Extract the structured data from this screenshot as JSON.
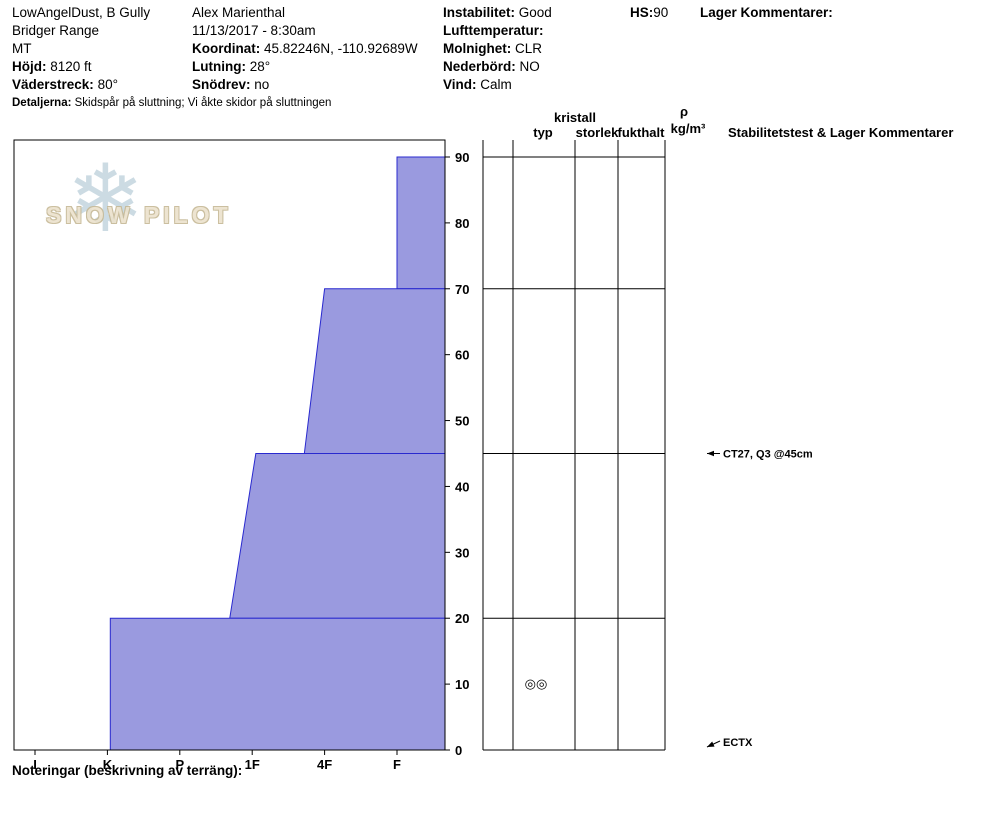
{
  "header": {
    "site_name": "LowAngelDust, B Gully",
    "range": "Bridger Range",
    "state": "MT",
    "elevation_label": "Höjd:",
    "elevation_value": "8120 ft",
    "aspect_label": "Väderstreck:",
    "aspect_value": "80°",
    "observer": "Alex Marienthal",
    "datetime": "11/13/2017 - 8:30am",
    "coordinates_label": "Koordinat:",
    "coordinates_value": "45.82246N, -110.92689W",
    "slope_label": "Lutning:",
    "slope_value": "28°",
    "drifting_label": "Snödrev:",
    "drifting_value": "no",
    "instability_label": "Instabilitet:",
    "instability_value": "Good",
    "air_temp_label": "Lufttemperatur:",
    "air_temp_value": "",
    "sky_label": "Molnighet:",
    "sky_value": "CLR",
    "precip_label": "Nederbörd:",
    "precip_value": "NO",
    "wind_label": "Vind:",
    "wind_value": "Calm",
    "hs_label": "HS:",
    "hs_value": "90",
    "layer_comments_label": "Lager Kommentarer:",
    "details_label": "Detaljerna:",
    "details_value": "Skidspår på sluttning; Vi åkte skidor på sluttningen"
  },
  "logo": {
    "snowflake": "❄",
    "text": "SNOW PILOT"
  },
  "columns": {
    "kristall": "kristall",
    "typ": "typ",
    "storlek": "storlek",
    "fukthalt": "fukthalt",
    "rho": "ρ",
    "rho_units": "kg/m³",
    "stability_header": "Stabilitetstest & Lager Kommentarer"
  },
  "grain_symbols": [
    {
      "symbol": "◎◎",
      "depth_cm": 10
    }
  ],
  "annotations": [
    {
      "text": "CT27, Q3 @45cm",
      "depth_cm": 45
    },
    {
      "text": "ECTX",
      "depth_cm": 0
    }
  ],
  "footer": {
    "notes_label": "Noteringar (beskrivning av terräng):"
  },
  "chart_data": {
    "type": "area",
    "ylim": [
      0,
      90
    ],
    "yticks": [
      0,
      10,
      20,
      30,
      40,
      50,
      60,
      70,
      80,
      90
    ],
    "hardness_scale": [
      "I",
      "K",
      "P",
      "1F",
      "4F",
      "F"
    ],
    "layers": [
      {
        "top_cm": 90,
        "bottom_cm": 70,
        "hardness": "F",
        "index_top": 5.0,
        "index_bottom": 5.0
      },
      {
        "top_cm": 70,
        "bottom_cm": 45,
        "hardness": "4F",
        "index_top": 4.0,
        "index_bottom": 3.72
      },
      {
        "top_cm": 45,
        "bottom_cm": 20,
        "hardness": "1F",
        "index_top": 3.05,
        "index_bottom": 2.69
      },
      {
        "top_cm": 20,
        "bottom_cm": 0,
        "hardness": "K",
        "index_top": 1.04,
        "index_bottom": 1.04
      }
    ],
    "colors": {
      "layer_fill": "#9a9adf",
      "layer_stroke": "#2929cf"
    }
  }
}
